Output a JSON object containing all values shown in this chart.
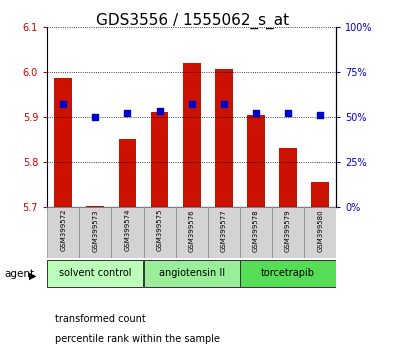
{
  "title": "GDS3556 / 1555062_s_at",
  "samples": [
    "GSM399572",
    "GSM399573",
    "GSM399574",
    "GSM399575",
    "GSM399576",
    "GSM399577",
    "GSM399578",
    "GSM399579",
    "GSM399580"
  ],
  "transformed_count": [
    5.985,
    5.702,
    5.85,
    5.91,
    6.02,
    6.005,
    5.905,
    5.83,
    5.755
  ],
  "percentile_rank": [
    57,
    50,
    52,
    53,
    57,
    57,
    52,
    52,
    51
  ],
  "ylim_left": [
    5.7,
    6.1
  ],
  "ylim_right": [
    0,
    100
  ],
  "yticks_left": [
    5.7,
    5.8,
    5.9,
    6.0,
    6.1
  ],
  "yticks_right": [
    0,
    25,
    50,
    75,
    100
  ],
  "bar_color": "#cc1100",
  "dot_color": "#0000cc",
  "groups": [
    {
      "label": "solvent control",
      "indices": [
        0,
        1,
        2
      ],
      "color": "#bbffbb"
    },
    {
      "label": "angiotensin II",
      "indices": [
        3,
        4,
        5
      ],
      "color": "#99ee99"
    },
    {
      "label": "torcetrapib",
      "indices": [
        6,
        7,
        8
      ],
      "color": "#55dd55"
    }
  ],
  "agent_label": "agent",
  "legend_bar_label": "transformed count",
  "legend_dot_label": "percentile rank within the sample",
  "background_color": "#ffffff",
  "plot_bg": "#ffffff",
  "title_fontsize": 11,
  "axis_fontsize": 7,
  "tick_label_color_left": "#cc0000",
  "tick_label_color_right": "#0000cc",
  "sample_label_fontsize": 5,
  "group_label_fontsize": 7
}
